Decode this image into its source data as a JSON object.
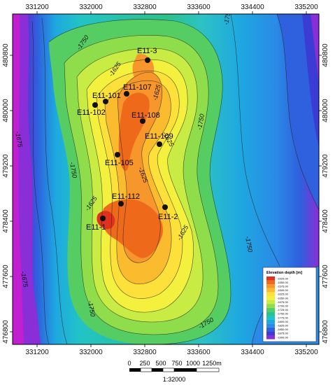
{
  "map": {
    "x_ticks": [
      "331200",
      "332000",
      "332800",
      "333600",
      "334400",
      "335200"
    ],
    "y_ticks": [
      "480800",
      "480000",
      "479200",
      "478400",
      "477600",
      "476800"
    ],
    "wells": [
      {
        "name": "E11-3"
      },
      {
        "name": "E11-107"
      },
      {
        "name": "E11-101"
      },
      {
        "name": "E11-102"
      },
      {
        "name": "E11-108"
      },
      {
        "name": "E11-109"
      },
      {
        "name": "E11-105"
      },
      {
        "name": "E11-112"
      },
      {
        "name": "E11-2"
      },
      {
        "name": "E11-1"
      }
    ],
    "contour_labels": [
      "-1750",
      "-1625",
      "-1625",
      "-1750",
      "-1625",
      "-1750",
      "-1625",
      "-1625",
      "-1750",
      "-1750",
      "-1750",
      "-1750",
      "-1675",
      "-1675",
      "-1625"
    ],
    "legend": {
      "title": "Elevation depth [m]",
      "entries": [
        "-1525.00",
        "-1550.00",
        "-1575.00",
        "-1600.00",
        "-1625.00",
        "-1650.00",
        "-1675.00",
        "-1700.00",
        "-1725.00",
        "-1750.00",
        "-1775.00",
        "-1800.00",
        "-1825.00",
        "-1850.00",
        "-1875.00",
        "-1900.00"
      ],
      "colors": [
        "#e0301e",
        "#ee6a1a",
        "#f7962a",
        "#fbbb2f",
        "#fde03a",
        "#f4f13e",
        "#c9ec45",
        "#8fdd4a",
        "#56cd62",
        "#2ec18c",
        "#22c3c6",
        "#1ea8e0",
        "#2a8ae6",
        "#2f60dd",
        "#3a3cd4",
        "#8a2ed8"
      ]
    },
    "scale_bar": {
      "labels": [
        "0",
        "250",
        "500",
        "750",
        "1000",
        "1250m"
      ],
      "ratio": "1:32000"
    }
  }
}
